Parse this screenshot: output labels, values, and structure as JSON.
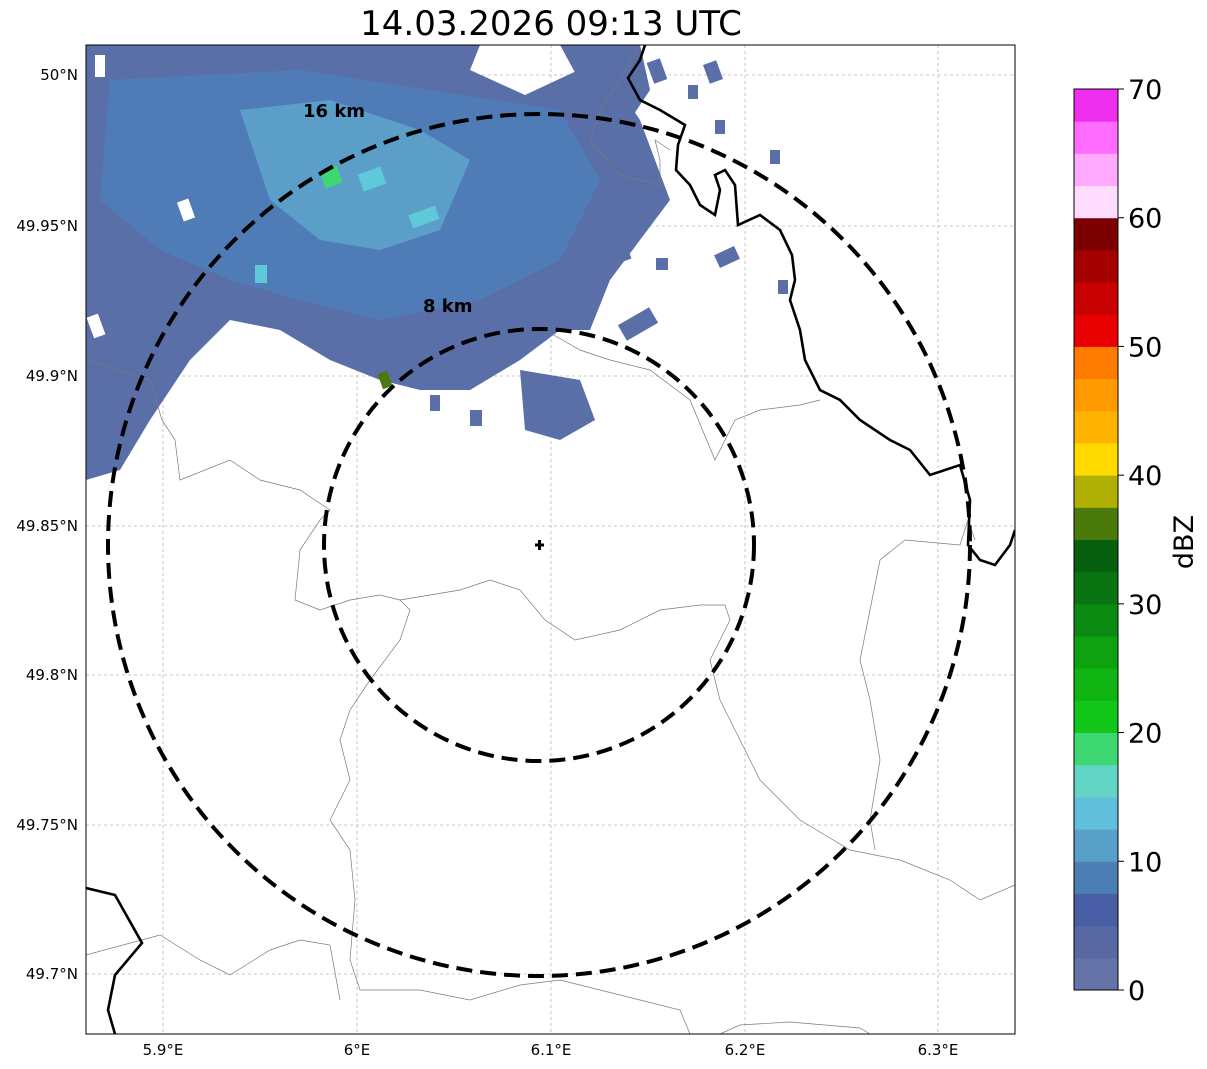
{
  "title": "14.03.2026 09:13 UTC",
  "map": {
    "lon_ticks": [
      "5.9°E",
      "6°E",
      "6.1°E",
      "6.2°E",
      "6.3°E"
    ],
    "lat_ticks": [
      "50°N",
      "49.95°N",
      "49.9°N",
      "49.85°N",
      "49.8°N",
      "49.75°N",
      "49.7°N"
    ],
    "rings": [
      {
        "label": "8 km",
        "radius_km": 8
      },
      {
        "label": "16 km",
        "radius_km": 16
      }
    ],
    "center_marker": "radar-site-cross-icon"
  },
  "colorbar": {
    "label": "dBZ",
    "ticks": [
      "0",
      "10",
      "20",
      "30",
      "40",
      "50",
      "60",
      "70"
    ],
    "min": 0,
    "max": 70,
    "step": 2.5,
    "colors": [
      "#6574a8",
      "#5768a2",
      "#4a5ea6",
      "#4d7db5",
      "#58a0c8",
      "#62bfdc",
      "#62d5c4",
      "#3ed872",
      "#12c71a",
      "#10b514",
      "#0ea210",
      "#0a8a10",
      "#087310",
      "#065f0e",
      "#4a7a0c",
      "#b0b004",
      "#ffd900",
      "#ffb300",
      "#ff9a00",
      "#ff7c00",
      "#e80000",
      "#c80000",
      "#a40000",
      "#7c0000",
      "#ffdcff",
      "#ffaaff",
      "#ff6cff",
      "#ee30ee"
    ]
  }
}
